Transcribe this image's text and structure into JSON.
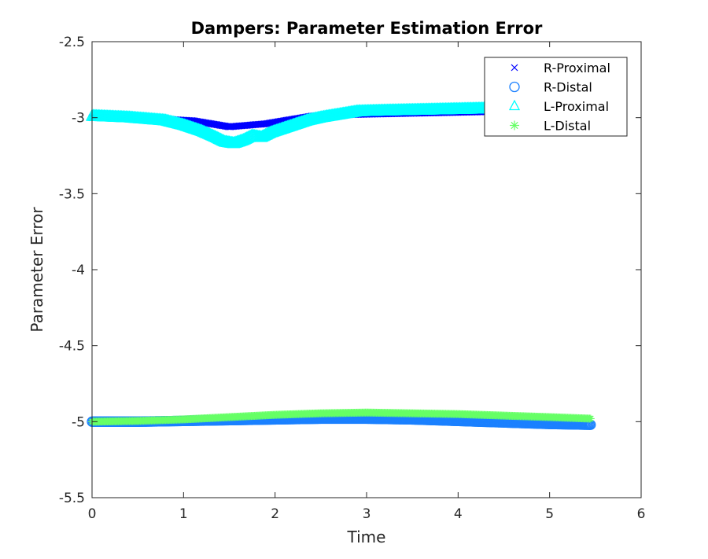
{
  "chart_data": {
    "type": "scatter",
    "title": "Dampers: Parameter Estimation Error",
    "xlabel": "Time",
    "ylabel": "Parameter Error",
    "xlim": [
      0,
      6
    ],
    "ylim": [
      -5.5,
      -2.5
    ],
    "xticks": [
      "0",
      "1",
      "2",
      "3",
      "4",
      "5",
      "6"
    ],
    "yticks": [
      "-2.5",
      "-3",
      "-3.5",
      "-4",
      "-4.5",
      "-5",
      "-5.5"
    ],
    "grid": false,
    "legend_position": "top-right",
    "series": [
      {
        "name": "R-Proximal",
        "marker": "x",
        "color": "#0000ff",
        "x": [
          0.0,
          0.4,
          0.8,
          1.1,
          1.3,
          1.5,
          1.7,
          1.9,
          2.1,
          2.4,
          2.8,
          3.2,
          3.6,
          4.0,
          4.4,
          4.7
        ],
        "y": [
          -3.0,
          -3.0,
          -3.01,
          -3.02,
          -3.04,
          -3.06,
          -3.05,
          -3.04,
          -3.02,
          -2.99,
          -2.98,
          -2.975,
          -2.97,
          -2.965,
          -2.96,
          -2.96
        ]
      },
      {
        "name": "R-Distal",
        "marker": "o",
        "color": "#1a80ff",
        "x": [
          0.0,
          0.5,
          1.0,
          1.5,
          2.0,
          2.5,
          3.0,
          3.5,
          4.0,
          4.5,
          5.0,
          5.45
        ],
        "y": [
          -5.0,
          -5.0,
          -4.995,
          -4.99,
          -4.985,
          -4.98,
          -4.98,
          -4.985,
          -4.995,
          -5.005,
          -5.015,
          -5.02
        ]
      },
      {
        "name": "L-Proximal",
        "marker": "^",
        "color": "#00ffff",
        "x": [
          0.0,
          0.4,
          0.8,
          1.0,
          1.2,
          1.35,
          1.45,
          1.55,
          1.65,
          1.75,
          1.85,
          1.95,
          2.05,
          2.15,
          2.25,
          2.35,
          2.5,
          2.7,
          2.9,
          3.2,
          3.6,
          4.0,
          4.4,
          4.7
        ],
        "y": [
          -2.99,
          -3.0,
          -3.02,
          -3.05,
          -3.09,
          -3.13,
          -3.16,
          -3.17,
          -3.15,
          -3.12,
          -3.13,
          -3.1,
          -3.08,
          -3.06,
          -3.04,
          -3.02,
          -3.0,
          -2.98,
          -2.96,
          -2.955,
          -2.95,
          -2.945,
          -2.94,
          -2.935
        ]
      },
      {
        "name": "L-Distal",
        "marker": "*",
        "color": "#66ff66",
        "x": [
          0.0,
          0.5,
          1.0,
          1.5,
          2.0,
          2.5,
          3.0,
          3.5,
          4.0,
          4.5,
          5.0,
          5.45
        ],
        "y": [
          -5.0,
          -4.995,
          -4.985,
          -4.97,
          -4.955,
          -4.945,
          -4.94,
          -4.945,
          -4.95,
          -4.96,
          -4.97,
          -4.98
        ]
      }
    ]
  }
}
